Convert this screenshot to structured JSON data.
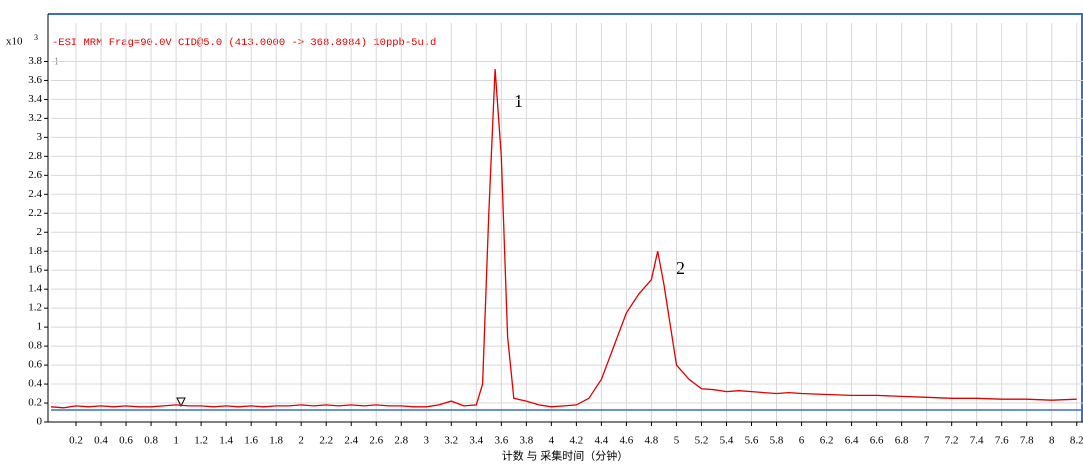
{
  "chart_data": {
    "type": "line",
    "title": "-ESI MRM Frag=90.0V CID@5.0 (413.0000 -> 368.8984) 10ppb-5u.d",
    "y_unit": "x10",
    "y_unit_exponent": "3",
    "panel_label": "1",
    "x_label": "计数 与 采集时间（分钟）",
    "annotations": [
      "1",
      "2"
    ],
    "color": "#e00000",
    "grid": true,
    "x": [
      0.0,
      0.1,
      0.2,
      0.3,
      0.4,
      0.5,
      0.6,
      0.7,
      0.8,
      0.9,
      1.0,
      1.1,
      1.2,
      1.3,
      1.4,
      1.5,
      1.6,
      1.7,
      1.8,
      1.9,
      2.0,
      2.1,
      2.2,
      2.3,
      2.4,
      2.5,
      2.6,
      2.7,
      2.8,
      2.9,
      3.0,
      3.1,
      3.2,
      3.3,
      3.4,
      3.45,
      3.5,
      3.55,
      3.6,
      3.65,
      3.7,
      3.8,
      3.9,
      4.0,
      4.1,
      4.2,
      4.3,
      4.4,
      4.5,
      4.6,
      4.7,
      4.8,
      4.85,
      4.9,
      5.0,
      5.1,
      5.2,
      5.3,
      5.4,
      5.5,
      5.6,
      5.7,
      5.8,
      5.9,
      6.0,
      6.2,
      6.4,
      6.6,
      6.8,
      7.0,
      7.2,
      7.4,
      7.6,
      7.8,
      8.0,
      8.2
    ],
    "values": [
      0.16,
      0.15,
      0.17,
      0.16,
      0.17,
      0.16,
      0.17,
      0.16,
      0.16,
      0.17,
      0.18,
      0.17,
      0.17,
      0.16,
      0.17,
      0.16,
      0.17,
      0.16,
      0.17,
      0.17,
      0.18,
      0.17,
      0.18,
      0.17,
      0.18,
      0.17,
      0.18,
      0.17,
      0.17,
      0.16,
      0.16,
      0.18,
      0.22,
      0.17,
      0.18,
      0.4,
      2.2,
      3.72,
      2.8,
      0.9,
      0.25,
      0.22,
      0.18,
      0.16,
      0.17,
      0.18,
      0.25,
      0.45,
      0.8,
      1.15,
      1.35,
      1.5,
      1.8,
      1.45,
      0.6,
      0.45,
      0.35,
      0.34,
      0.32,
      0.33,
      0.32,
      0.31,
      0.3,
      0.31,
      0.3,
      0.29,
      0.28,
      0.28,
      0.27,
      0.26,
      0.25,
      0.25,
      0.24,
      0.24,
      0.23,
      0.24
    ],
    "xlim": [
      0,
      8.25
    ],
    "xticks": [
      0.2,
      0.4,
      0.6,
      0.8,
      1,
      1.2,
      1.4,
      1.6,
      1.8,
      2,
      2.2,
      2.4,
      2.6,
      2.8,
      3,
      3.2,
      3.4,
      3.6,
      3.8,
      4,
      4.2,
      4.4,
      4.6,
      4.8,
      5,
      5.2,
      5.4,
      5.6,
      5.8,
      6,
      6.2,
      6.4,
      6.6,
      6.8,
      7,
      7.2,
      7.4,
      7.6,
      7.8,
      8,
      8.2
    ],
    "ylim": [
      0,
      4.1
    ],
    "yticks": [
      0,
      0.2,
      0.4,
      0.6,
      0.8,
      1,
      1.2,
      1.4,
      1.6,
      1.8,
      2,
      2.2,
      2.4,
      2.6,
      2.8,
      3,
      3.2,
      3.4,
      3.6,
      3.8
    ]
  }
}
